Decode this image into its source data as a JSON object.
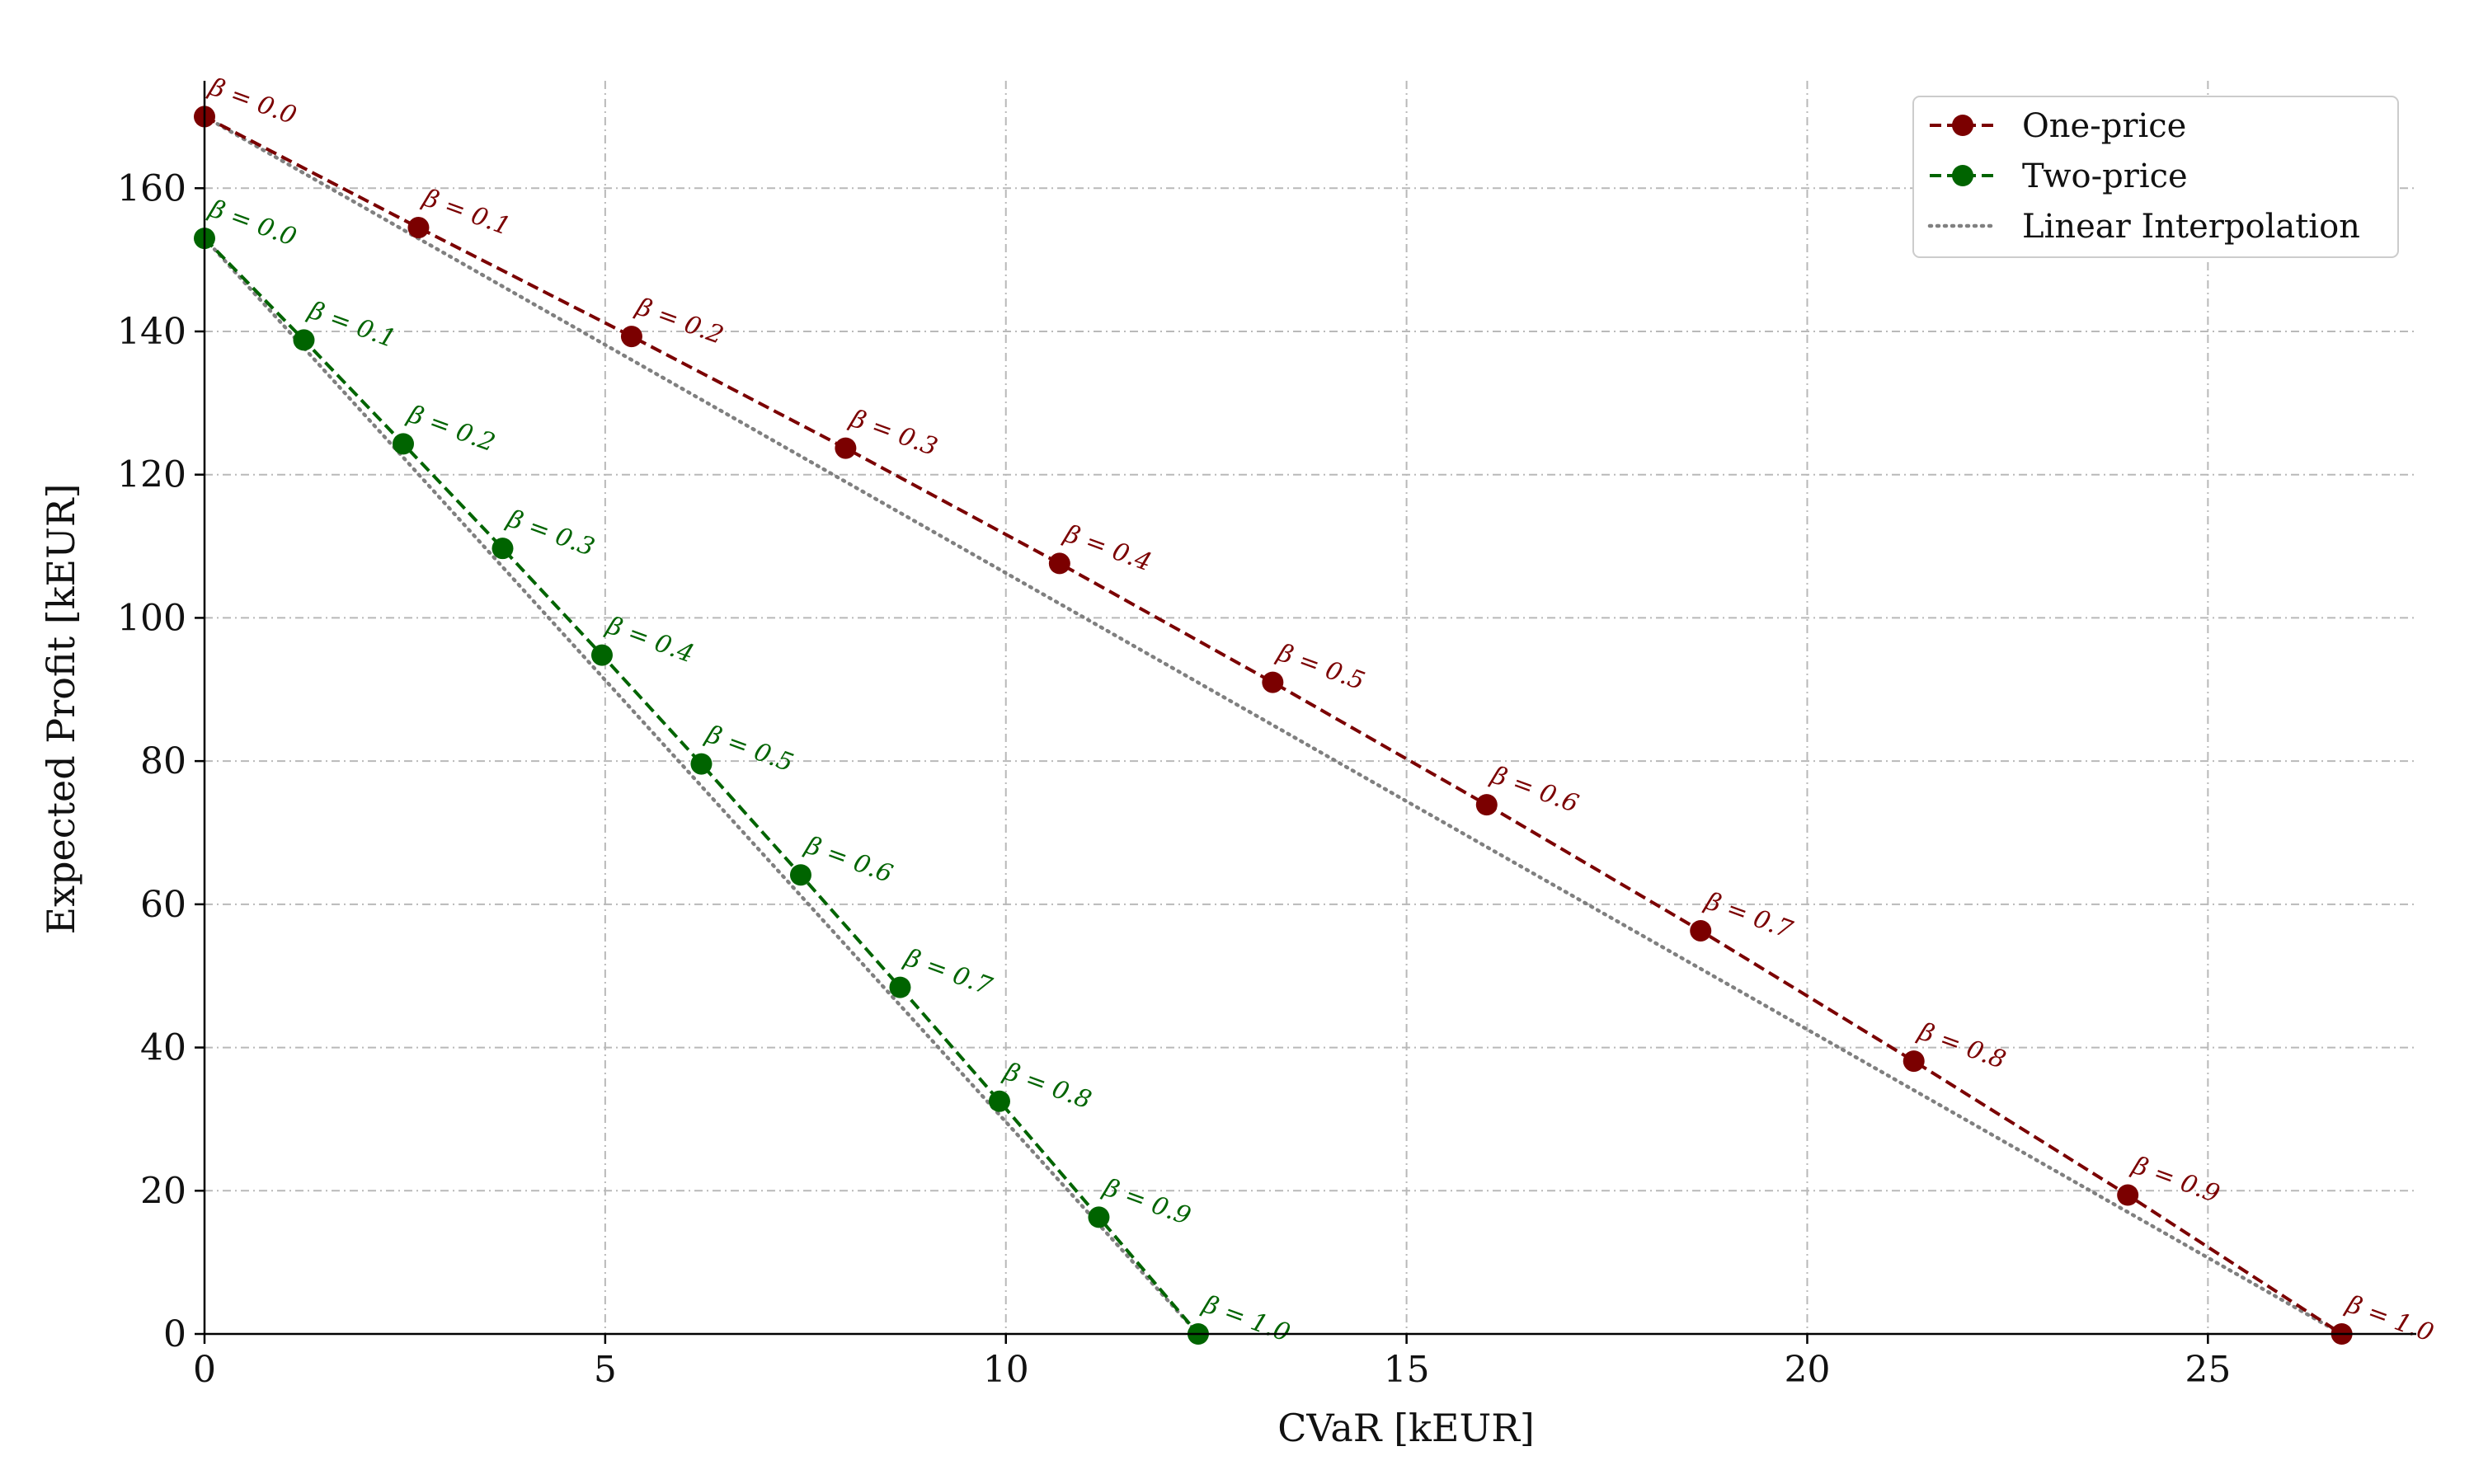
{
  "chart_data": {
    "type": "line",
    "xlabel": "CVaR [kEUR]",
    "ylabel": "Expected Profit [kEUR]",
    "xlim": [
      0,
      27.6
    ],
    "ylim": [
      0,
      175
    ],
    "xticks": [
      0,
      5,
      10,
      15,
      20,
      25
    ],
    "yticks": [
      0,
      20,
      40,
      60,
      80,
      100,
      120,
      140,
      160
    ],
    "grid": true,
    "legend_position": "top-right",
    "beta_label_prefix": "β = ",
    "series": [
      {
        "name": "One-price",
        "color": "#7b0000",
        "style": "dashed-markers",
        "x": [
          0.0,
          2.67,
          5.33,
          8.0,
          10.67,
          13.33,
          16.0,
          18.67,
          21.33,
          24.0,
          26.67
        ],
        "y": [
          170.0,
          154.5,
          139.3,
          123.7,
          107.6,
          91.0,
          73.9,
          56.3,
          38.1,
          19.4,
          0.0
        ],
        "beta": [
          "0.0",
          "0.1",
          "0.2",
          "0.3",
          "0.4",
          "0.5",
          "0.6",
          "0.7",
          "0.8",
          "0.9",
          "1.0"
        ]
      },
      {
        "name": "Two-price",
        "color": "#006400",
        "style": "dashed-markers",
        "x": [
          0.0,
          1.24,
          2.48,
          3.72,
          4.96,
          6.2,
          7.44,
          8.68,
          9.92,
          11.16,
          12.4
        ],
        "y": [
          153.0,
          138.8,
          124.3,
          109.7,
          94.8,
          79.6,
          64.1,
          48.4,
          32.5,
          16.3,
          0.0
        ],
        "beta": [
          "0.0",
          "0.1",
          "0.2",
          "0.3",
          "0.4",
          "0.5",
          "0.6",
          "0.7",
          "0.8",
          "0.9",
          "1.0"
        ]
      },
      {
        "name": "Linear Interpolation",
        "color": "#808080",
        "style": "dotted"
      }
    ]
  }
}
